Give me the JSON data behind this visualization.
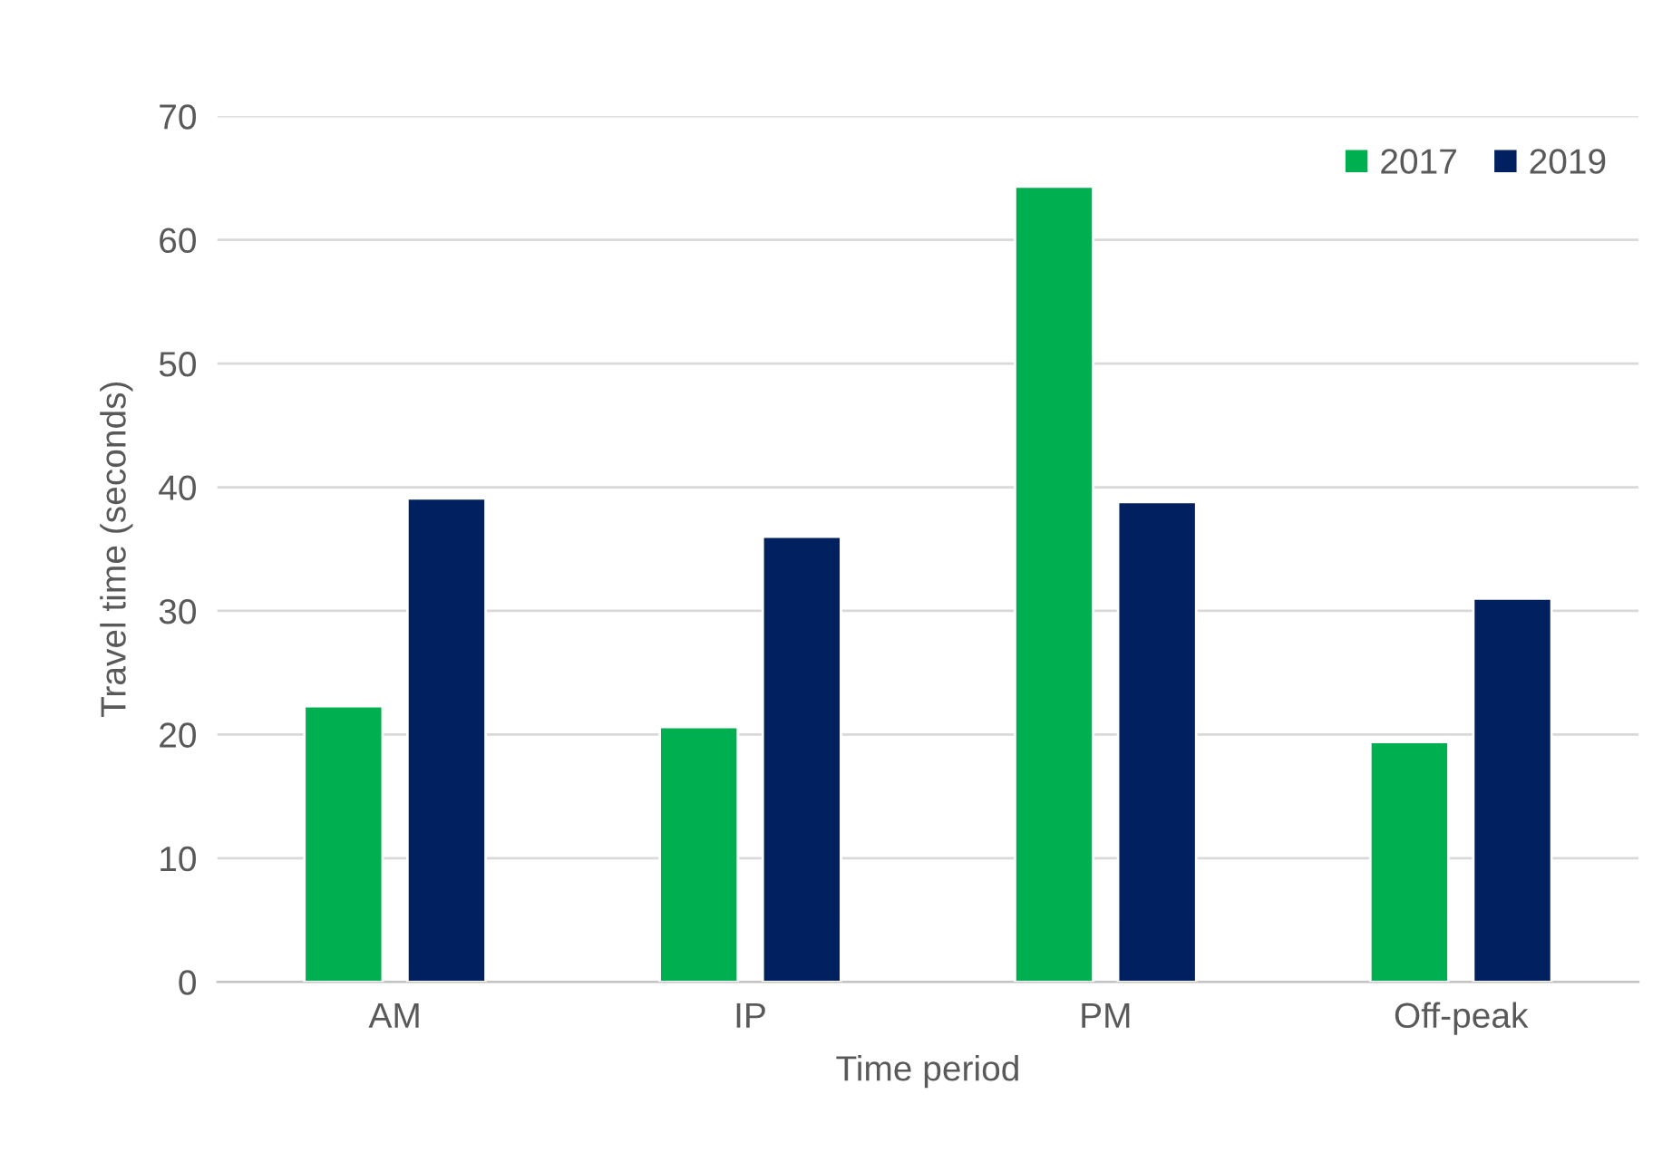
{
  "chart_data": {
    "type": "bar",
    "xlabel": "Time period",
    "ylabel": "Travel time (seconds)",
    "categories": [
      "AM",
      "IP",
      "PM",
      "Off-peak"
    ],
    "series": [
      {
        "name": "2017",
        "color": "#00b050",
        "values": [
          22.3,
          20.6,
          64.3,
          19.4
        ]
      },
      {
        "name": "2019",
        "color": "#002060",
        "values": [
          39.1,
          36.0,
          38.8,
          31.0
        ]
      }
    ],
    "ylim": [
      0,
      70
    ],
    "yticks": [
      0,
      10,
      20,
      30,
      40,
      50,
      60,
      70
    ],
    "grid": "y",
    "legend": "top right"
  }
}
